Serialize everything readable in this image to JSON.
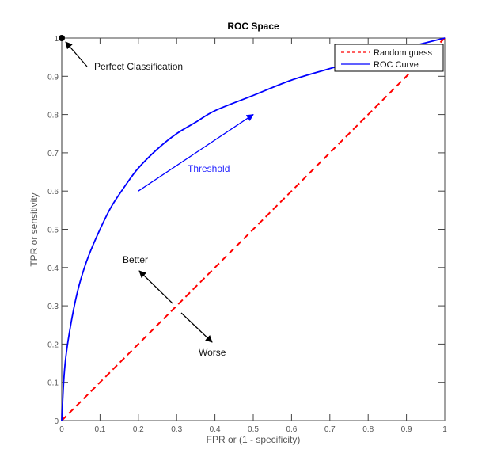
{
  "chart_data": {
    "type": "line",
    "title": "ROC Space",
    "xlabel": "FPR or (1 - specificity)",
    "ylabel": "TPR or sensitivity",
    "xlim": [
      0,
      1
    ],
    "ylim": [
      0,
      1
    ],
    "grid": false,
    "legend_position": "upper right",
    "x_ticks": [
      "0",
      "0.1",
      "0.2",
      "0.3",
      "0.4",
      "0.5",
      "0.6",
      "0.7",
      "0.8",
      "0.9",
      "1"
    ],
    "y_ticks": [
      "0",
      "0.1",
      "0.2",
      "0.3",
      "0.4",
      "0.5",
      "0.6",
      "0.7",
      "0.8",
      "0.9",
      "1"
    ],
    "series": [
      {
        "name": "Random guess",
        "style": "dashed",
        "color": "#ff0000",
        "x": [
          0,
          1
        ],
        "y": [
          0,
          1
        ]
      },
      {
        "name": "ROC Curve",
        "style": "solid",
        "color": "#0000ff",
        "x": [
          0,
          0.005,
          0.01,
          0.02,
          0.035,
          0.05,
          0.07,
          0.1,
          0.13,
          0.17,
          0.2,
          0.25,
          0.3,
          0.35,
          0.4,
          0.5,
          0.6,
          0.7,
          0.8,
          0.9,
          1.0
        ],
        "y": [
          0,
          0.1,
          0.16,
          0.23,
          0.31,
          0.37,
          0.43,
          0.5,
          0.56,
          0.62,
          0.66,
          0.71,
          0.75,
          0.78,
          0.81,
          0.85,
          0.89,
          0.92,
          0.95,
          0.975,
          1.0
        ]
      }
    ],
    "annotations": [
      {
        "text": "Perfect Classification",
        "x": 0.09,
        "y": 0.95,
        "arrow_to": [
          0,
          1
        ]
      },
      {
        "text": "Threshold",
        "x": 0.33,
        "y": 0.68,
        "color": "#0000ff",
        "arrow_from": [
          0.2,
          0.6
        ],
        "arrow_to": [
          0.5,
          0.8
        ]
      },
      {
        "text": "Better",
        "x": 0.16,
        "y": 0.42,
        "arrow_from": [
          0.3,
          0.3
        ],
        "arrow_to": [
          0.2,
          0.4
        ]
      },
      {
        "text": "Worse",
        "x": 0.36,
        "y": 0.18,
        "arrow_from": [
          0.32,
          0.28
        ],
        "arrow_to": [
          0.4,
          0.2
        ]
      }
    ]
  },
  "legend": {
    "items": [
      {
        "label": "Random guess",
        "color": "#ff0000",
        "style": "dashed"
      },
      {
        "label": "ROC Curve",
        "color": "#0000ff",
        "style": "solid"
      }
    ]
  }
}
